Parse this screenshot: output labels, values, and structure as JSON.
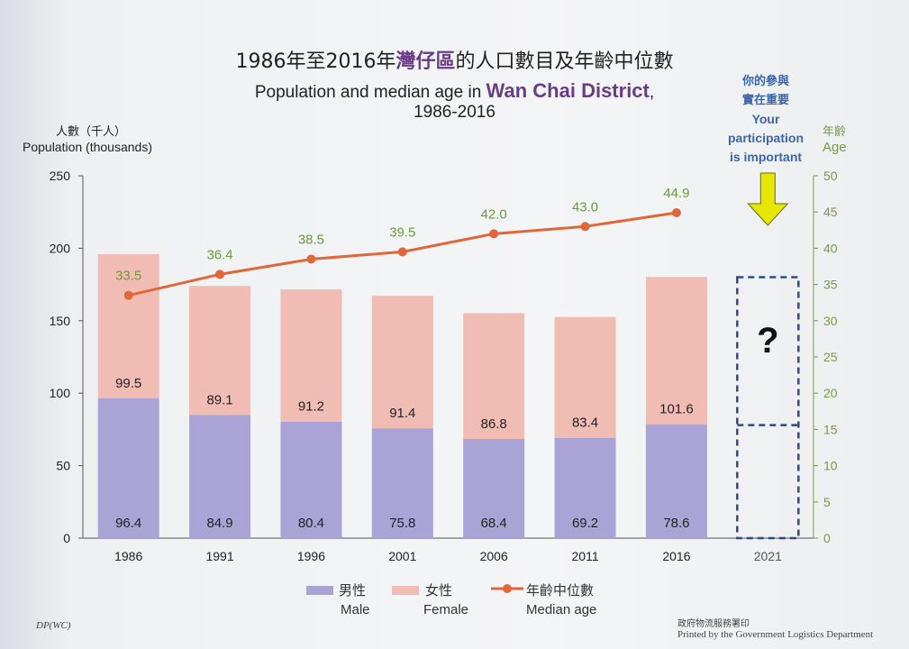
{
  "title": {
    "zh_prefix": "1986年至2016年",
    "zh_highlight": "灣仔區",
    "zh_suffix": "的人口數目及年齡中位數",
    "en_prefix": "Population and median age in ",
    "en_highlight": "Wan Chai District",
    "en_suffix": ",",
    "en_years": "1986-2016"
  },
  "left_axis": {
    "label_zh": "人數（千人）",
    "label_en": "Population (thousands)"
  },
  "right_axis": {
    "label_zh": "年齡",
    "label_en": "Age"
  },
  "callout": {
    "zh_line1": "你的參與",
    "zh_line2": "實在重要",
    "en_line1": "Your",
    "en_line2": "participation",
    "en_line3": "is important",
    "color": "#3d66a8",
    "arrow_color": "#e6e600"
  },
  "question_mark": "?",
  "legend": {
    "male_zh": "男性",
    "male_en": "Male",
    "female_zh": "女性",
    "female_en": "Female",
    "median_zh": "年齡中位數",
    "median_en": "Median age"
  },
  "footer": {
    "left": "DP(WC)",
    "right_zh": "政府物流服務署印",
    "right_en": "Printed by the Government Logistics Department"
  },
  "colors": {
    "male": "#a9a3d6",
    "female": "#f0bcb4",
    "median_line": "#e0673a",
    "median_label": "#6a9a3a",
    "placeholder_border": "#2f4a86"
  },
  "chart_data": {
    "type": "bar",
    "stacked": true,
    "categories": [
      "1986",
      "1991",
      "1996",
      "2001",
      "2006",
      "2011",
      "2016",
      "2021"
    ],
    "series": [
      {
        "name": "Male",
        "values": [
          96.4,
          84.9,
          80.4,
          75.8,
          68.4,
          69.2,
          78.6,
          null
        ]
      },
      {
        "name": "Female",
        "values": [
          99.5,
          89.1,
          91.2,
          91.4,
          86.8,
          83.4,
          101.6,
          null
        ]
      }
    ],
    "line_series": {
      "name": "Median age",
      "axis": "right",
      "values": [
        33.5,
        36.4,
        38.5,
        39.5,
        42.0,
        43.0,
        44.9,
        null
      ]
    },
    "left_ylim": [
      0,
      250
    ],
    "left_yticks": [
      "0",
      "50",
      "100",
      "150",
      "200",
      "250"
    ],
    "right_ylim": [
      0,
      50
    ],
    "right_yticks": [
      "0",
      "5",
      "10",
      "15",
      "20",
      "25",
      "30",
      "35",
      "40",
      "45",
      "50"
    ],
    "line_labels": [
      "33.5",
      "36.4",
      "38.5",
      "39.5",
      "42.0",
      "43.0",
      "44.9"
    ],
    "male_labels": [
      "96.4",
      "84.9",
      "80.4",
      "75.8",
      "68.4",
      "69.2",
      "78.6"
    ],
    "female_labels": [
      "99.5",
      "89.1",
      "91.2",
      "91.4",
      "86.8",
      "83.4",
      "101.6"
    ],
    "legend_position": "bottom",
    "grid": false
  }
}
